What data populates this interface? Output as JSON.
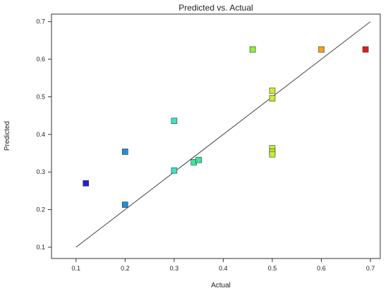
{
  "chart_data": {
    "type": "scatter",
    "title": "Predicted vs. Actual",
    "xlabel": "Actual",
    "ylabel": "Predicted",
    "xlim": [
      0.05,
      0.72
    ],
    "ylim": [
      0.07,
      0.72
    ],
    "x_ticks": [
      "0.1",
      "0.2",
      "0.3",
      "0.4",
      "0.5",
      "0.6",
      "0.7"
    ],
    "y_ticks": [
      "0.1",
      "0.2",
      "0.3",
      "0.4",
      "0.5",
      "0.6",
      "0.7"
    ],
    "reference_line": {
      "from": [
        0.1,
        0.1
      ],
      "to": [
        0.7,
        0.7
      ]
    },
    "grid": false,
    "points": [
      {
        "x": 0.12,
        "y": 0.27,
        "color": "#1f1fe0"
      },
      {
        "x": 0.2,
        "y": 0.213,
        "color": "#1f8fe0"
      },
      {
        "x": 0.2,
        "y": 0.354,
        "color": "#1f8fe0"
      },
      {
        "x": 0.3,
        "y": 0.436,
        "color": "#33e6c9"
      },
      {
        "x": 0.3,
        "y": 0.304,
        "color": "#33e6c9"
      },
      {
        "x": 0.34,
        "y": 0.326,
        "color": "#3be69a"
      },
      {
        "x": 0.35,
        "y": 0.332,
        "color": "#3be69a"
      },
      {
        "x": 0.46,
        "y": 0.626,
        "color": "#8ff03a"
      },
      {
        "x": 0.5,
        "y": 0.516,
        "color": "#c6f02e"
      },
      {
        "x": 0.5,
        "y": 0.496,
        "color": "#c6f02e"
      },
      {
        "x": 0.5,
        "y": 0.363,
        "color": "#c6f02e"
      },
      {
        "x": 0.5,
        "y": 0.354,
        "color": "#c6f02e"
      },
      {
        "x": 0.5,
        "y": 0.347,
        "color": "#c6f02e"
      },
      {
        "x": 0.6,
        "y": 0.626,
        "color": "#f5a020"
      },
      {
        "x": 0.69,
        "y": 0.626,
        "color": "#e81818"
      }
    ]
  }
}
